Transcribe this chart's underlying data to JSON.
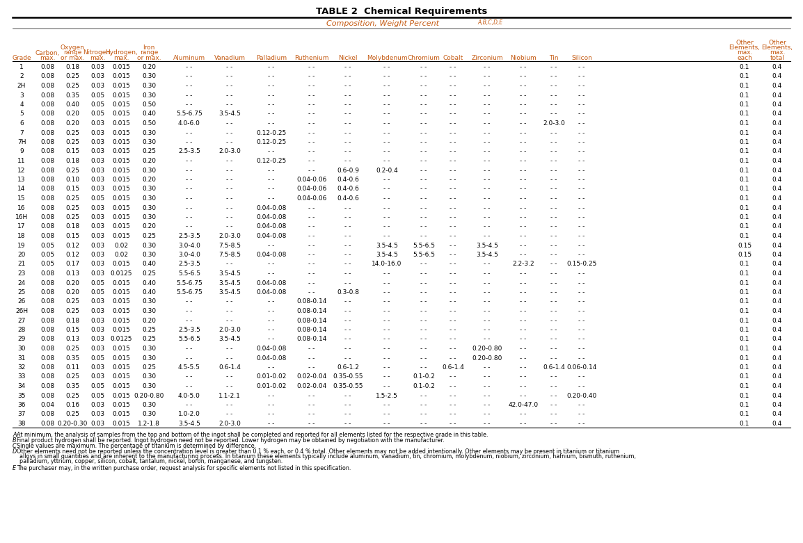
{
  "title": "TABLE 2  Chemical Requirements",
  "subtitle": "Composition, Weight Percent",
  "subtitle_super": "A,B,C,D,E",
  "header_color": "#c45911",
  "data_color": "#000000",
  "title_color": "#000000",
  "bg_color": "#ffffff",
  "line_color": "#000000",
  "rows": [
    [
      "1",
      "0.08",
      "0.18",
      "0.03",
      "0.015",
      "0.20",
      "- -",
      "- -",
      "- -",
      "- -",
      "- -",
      "- -",
      "- -",
      "- -",
      "- -",
      "- -",
      "- -",
      "- -",
      "0.1",
      "0.4"
    ],
    [
      "2",
      "0.08",
      "0.25",
      "0.03",
      "0.015",
      "0.30",
      "- -",
      "- -",
      "- -",
      "- -",
      "- -",
      "- -",
      "- -",
      "- -",
      "- -",
      "- -",
      "- -",
      "- -",
      "0.1",
      "0.4"
    ],
    [
      "2H",
      "0.08",
      "0.25",
      "0.03",
      "0.015",
      "0.30",
      "- -",
      "- -",
      "- -",
      "- -",
      "- -",
      "- -",
      "- -",
      "- -",
      "- -",
      "- -",
      "- -",
      "- -",
      "0.1",
      "0.4"
    ],
    [
      "3",
      "0.08",
      "0.35",
      "0.05",
      "0.015",
      "0.30",
      "- -",
      "- -",
      "- -",
      "- -",
      "- -",
      "- -",
      "- -",
      "- -",
      "- -",
      "- -",
      "- -",
      "- -",
      "0.1",
      "0.4"
    ],
    [
      "4",
      "0.08",
      "0.40",
      "0.05",
      "0.015",
      "0.50",
      "- -",
      "- -",
      "- -",
      "- -",
      "- -",
      "- -",
      "- -",
      "- -",
      "- -",
      "- -",
      "- -",
      "- -",
      "0.1",
      "0.4"
    ],
    [
      "5",
      "0.08",
      "0.20",
      "0.05",
      "0.015",
      "0.40",
      "5.5-6.75",
      "3.5-4.5",
      "- -",
      "- -",
      "- -",
      "- -",
      "- -",
      "- -",
      "- -",
      "- -",
      "- -",
      "- -",
      "0.1",
      "0.4"
    ],
    [
      "6",
      "0.08",
      "0.20",
      "0.03",
      "0.015",
      "0.50",
      "4.0-6.0",
      "- -",
      "- -",
      "- -",
      "- -",
      "- -",
      "- -",
      "- -",
      "- -",
      "- -",
      "2.0-3.0",
      "- -",
      "0.1",
      "0.4"
    ],
    [
      "7",
      "0.08",
      "0.25",
      "0.03",
      "0.015",
      "0.30",
      "- -",
      "- -",
      "0.12-0.25",
      "- -",
      "- -",
      "- -",
      "- -",
      "- -",
      "- -",
      "- -",
      "- -",
      "- -",
      "0.1",
      "0.4"
    ],
    [
      "7H",
      "0.08",
      "0.25",
      "0.03",
      "0.015",
      "0.30",
      "- -",
      "- -",
      "0.12-0.25",
      "- -",
      "- -",
      "- -",
      "- -",
      "- -",
      "- -",
      "- -",
      "- -",
      "- -",
      "0.1",
      "0.4"
    ],
    [
      "9",
      "0.08",
      "0.15",
      "0.03",
      "0.015",
      "0.25",
      "2.5-3.5",
      "2.0-3.0",
      "- -",
      "- -",
      "- -",
      "- -",
      "- -",
      "- -",
      "- -",
      "- -",
      "- -",
      "- -",
      "0.1",
      "0.4"
    ],
    [
      "11",
      "0.08",
      "0.18",
      "0.03",
      "0.015",
      "0.20",
      "- -",
      "- -",
      "0.12-0.25",
      "- -",
      "- -",
      "- -",
      "- -",
      "- -",
      "- -",
      "- -",
      "- -",
      "- -",
      "0.1",
      "0.4"
    ],
    [
      "12",
      "0.08",
      "0.25",
      "0.03",
      "0.015",
      "0.30",
      "- -",
      "- -",
      "- -",
      "- -",
      "0.6-0.9",
      "0.2-0.4",
      "- -",
      "- -",
      "- -",
      "- -",
      "- -",
      "- -",
      "0.1",
      "0.4"
    ],
    [
      "13",
      "0.08",
      "0.10",
      "0.03",
      "0.015",
      "0.20",
      "- -",
      "- -",
      "- -",
      "0.04-0.06",
      "0.4-0.6",
      "- -",
      "- -",
      "- -",
      "- -",
      "- -",
      "- -",
      "- -",
      "0.1",
      "0.4"
    ],
    [
      "14",
      "0.08",
      "0.15",
      "0.03",
      "0.015",
      "0.30",
      "- -",
      "- -",
      "- -",
      "0.04-0.06",
      "0.4-0.6",
      "- -",
      "- -",
      "- -",
      "- -",
      "- -",
      "- -",
      "- -",
      "0.1",
      "0.4"
    ],
    [
      "15",
      "0.08",
      "0.25",
      "0.05",
      "0.015",
      "0.30",
      "- -",
      "- -",
      "- -",
      "0.04-0.06",
      "0.4-0.6",
      "- -",
      "- -",
      "- -",
      "- -",
      "- -",
      "- -",
      "- -",
      "0.1",
      "0.4"
    ],
    [
      "16",
      "0.08",
      "0.25",
      "0.03",
      "0.015",
      "0.30",
      "- -",
      "- -",
      "0.04-0.08",
      "- -",
      "- -",
      "- -",
      "- -",
      "- -",
      "- -",
      "- -",
      "- -",
      "- -",
      "0.1",
      "0.4"
    ],
    [
      "16H",
      "0.08",
      "0.25",
      "0.03",
      "0.015",
      "0.30",
      "- -",
      "- -",
      "0.04-0.08",
      "- -",
      "- -",
      "- -",
      "- -",
      "- -",
      "- -",
      "- -",
      "- -",
      "- -",
      "0.1",
      "0.4"
    ],
    [
      "17",
      "0.08",
      "0.18",
      "0.03",
      "0.015",
      "0.20",
      "- -",
      "- -",
      "0.04-0.08",
      "- -",
      "- -",
      "- -",
      "- -",
      "- -",
      "- -",
      "- -",
      "- -",
      "- -",
      "0.1",
      "0.4"
    ],
    [
      "18",
      "0.08",
      "0.15",
      "0.03",
      "0.015",
      "0.25",
      "2.5-3.5",
      "2.0-3.0",
      "0.04-0.08",
      "- -",
      "- -",
      "- -",
      "- -",
      "- -",
      "- -",
      "- -",
      "- -",
      "- -",
      "0.1",
      "0.4"
    ],
    [
      "19",
      "0.05",
      "0.12",
      "0.03",
      "0.02",
      "0.30",
      "3.0-4.0",
      "7.5-8.5",
      "- -",
      "- -",
      "- -",
      "3.5-4.5",
      "5.5-6.5",
      "- -",
      "3.5-4.5",
      "- -",
      "- -",
      "- -",
      "0.15",
      "0.4"
    ],
    [
      "20",
      "0.05",
      "0.12",
      "0.03",
      "0.02",
      "0.30",
      "3.0-4.0",
      "7.5-8.5",
      "0.04-0.08",
      "- -",
      "- -",
      "3.5-4.5",
      "5.5-6.5",
      "- -",
      "3.5-4.5",
      "- -",
      "- -",
      "- -",
      "0.15",
      "0.4"
    ],
    [
      "21",
      "0.05",
      "0.17",
      "0.03",
      "0.015",
      "0.40",
      "2.5-3.5",
      "- -",
      "- -",
      "- -",
      "- -",
      "14.0-16.0",
      "- -",
      "- -",
      "- -",
      "2.2-3.2",
      "- -",
      "0.15-0.25",
      "0.1",
      "0.4"
    ],
    [
      "23",
      "0.08",
      "0.13",
      "0.03",
      "0.0125",
      "0.25",
      "5.5-6.5",
      "3.5-4.5",
      "- -",
      "- -",
      "- -",
      "- -",
      "- -",
      "- -",
      "- -",
      "- -",
      "- -",
      "- -",
      "0.1",
      "0.4"
    ],
    [
      "24",
      "0.08",
      "0.20",
      "0.05",
      "0.015",
      "0.40",
      "5.5-6.75",
      "3.5-4.5",
      "0.04-0.08",
      "- -",
      "- -",
      "- -",
      "- -",
      "- -",
      "- -",
      "- -",
      "- -",
      "- -",
      "0.1",
      "0.4"
    ],
    [
      "25",
      "0.08",
      "0.20",
      "0.05",
      "0.015",
      "0.40",
      "5.5-6.75",
      "3.5-4.5",
      "0.04-0.08",
      "- -",
      "0.3-0.8",
      "- -",
      "- -",
      "- -",
      "- -",
      "- -",
      "- -",
      "- -",
      "0.1",
      "0.4"
    ],
    [
      "26",
      "0.08",
      "0.25",
      "0.03",
      "0.015",
      "0.30",
      "- -",
      "- -",
      "- -",
      "0.08-0.14",
      "- -",
      "- -",
      "- -",
      "- -",
      "- -",
      "- -",
      "- -",
      "- -",
      "0.1",
      "0.4"
    ],
    [
      "26H",
      "0.08",
      "0.25",
      "0.03",
      "0.015",
      "0.30",
      "- -",
      "- -",
      "- -",
      "0.08-0.14",
      "- -",
      "- -",
      "- -",
      "- -",
      "- -",
      "- -",
      "- -",
      "- -",
      "0.1",
      "0.4"
    ],
    [
      "27",
      "0.08",
      "0.18",
      "0.03",
      "0.015",
      "0.20",
      "- -",
      "- -",
      "- -",
      "0.08-0.14",
      "- -",
      "- -",
      "- -",
      "- -",
      "- -",
      "- -",
      "- -",
      "- -",
      "0.1",
      "0.4"
    ],
    [
      "28",
      "0.08",
      "0.15",
      "0.03",
      "0.015",
      "0.25",
      "2.5-3.5",
      "2.0-3.0",
      "- -",
      "0.08-0.14",
      "- -",
      "- -",
      "- -",
      "- -",
      "- -",
      "- -",
      "- -",
      "- -",
      "0.1",
      "0.4"
    ],
    [
      "29",
      "0.08",
      "0.13",
      "0.03",
      "0.0125",
      "0.25",
      "5.5-6.5",
      "3.5-4.5",
      "- -",
      "0.08-0.14",
      "- -",
      "- -",
      "- -",
      "- -",
      "- -",
      "- -",
      "- -",
      "- -",
      "0.1",
      "0.4"
    ],
    [
      "30",
      "0.08",
      "0.25",
      "0.03",
      "0.015",
      "0.30",
      "- -",
      "- -",
      "0.04-0.08",
      "- -",
      "- -",
      "- -",
      "- -",
      "- -",
      "0.20-0.80",
      "- -",
      "- -",
      "- -",
      "0.1",
      "0.4"
    ],
    [
      "31",
      "0.08",
      "0.35",
      "0.05",
      "0.015",
      "0.30",
      "- -",
      "- -",
      "0.04-0.08",
      "- -",
      "- -",
      "- -",
      "- -",
      "- -",
      "0.20-0.80",
      "- -",
      "- -",
      "- -",
      "0.1",
      "0.4"
    ],
    [
      "32",
      "0.08",
      "0.11",
      "0.03",
      "0.015",
      "0.25",
      "4.5-5.5",
      "0.6-1.4",
      "- -",
      "- -",
      "0.6-1.2",
      "- -",
      "- -",
      "0.6-1.4",
      "- -",
      "- -",
      "0.6-1.4",
      "0.06-0.14",
      "0.1",
      "0.4"
    ],
    [
      "33",
      "0.08",
      "0.25",
      "0.03",
      "0.015",
      "0.30",
      "- -",
      "- -",
      "0.01-0.02",
      "0.02-0.04",
      "0.35-0.55",
      "- -",
      "0.1-0.2",
      "- -",
      "- -",
      "- -",
      "- -",
      "- -",
      "0.1",
      "0.4"
    ],
    [
      "34",
      "0.08",
      "0.35",
      "0.05",
      "0.015",
      "0.30",
      "- -",
      "- -",
      "0.01-0.02",
      "0.02-0.04",
      "0.35-0.55",
      "- -",
      "0.1-0.2",
      "- -",
      "- -",
      "- -",
      "- -",
      "- -",
      "0.1",
      "0.4"
    ],
    [
      "35",
      "0.08",
      "0.25",
      "0.05",
      "0.015",
      "0.20-0.80",
      "4.0-5.0",
      "1.1-2.1",
      "- -",
      "- -",
      "- -",
      "1.5-2.5",
      "- -",
      "- -",
      "- -",
      "- -",
      "- -",
      "0.20-0.40",
      "0.1",
      "0.4"
    ],
    [
      "36",
      "0.04",
      "0.16",
      "0.03",
      "0.015",
      "0.30",
      "- -",
      "- -",
      "- -",
      "- -",
      "- -",
      "- -",
      "- -",
      "- -",
      "- -",
      "42.0-47.0",
      "- -",
      "- -",
      "0.1",
      "0.4"
    ],
    [
      "37",
      "0.08",
      "0.25",
      "0.03",
      "0.015",
      "0.30",
      "1.0-2.0",
      "- -",
      "- -",
      "- -",
      "- -",
      "- -",
      "- -",
      "- -",
      "- -",
      "- -",
      "- -",
      "- -",
      "0.1",
      "0.4"
    ],
    [
      "38",
      "0.08",
      "0.20-0.30",
      "0.03",
      "0.015",
      "1.2-1.8",
      "3.5-4.5",
      "2.0-3.0",
      "- -",
      "- -",
      "- -",
      "- -",
      "- -",
      "- -",
      "- -",
      "- -",
      "- -",
      "- -",
      "0.1",
      "0.4"
    ]
  ],
  "footnote_labels": [
    "A",
    "B",
    "C",
    "D",
    "E"
  ],
  "footnote_texts": [
    "At minimum, the analysis of samples from the top and bottom of the ingot shall be completed and reported for all elements listed for the respective grade in this table.",
    "Final product hydrogen shall be reported. Ingot hydrogen need not be reported. Lower hydrogen may be obtained by negotiation with the manufacturer.",
    "Single values are maximum. The percentage of titanium is determined by difference.",
    "Other elements need not be reported unless the concentration level is greater than 0.1 % each, or 0.4 % total. Other elements may not be added intentionally. Other elements may be present in titanium or titanium alloys in small quantities and are inherent to the manufacturing process. In titanium these elements typically include aluminum, vanadium, tin, chromium, molybdenum, niobium, zirconium, hafnium, bismuth, ruthenium, palladium, yttrium, copper, silicon, cobalt, tantalum, nickel, boron, manganese, and tungsten.",
    "The purchaser may, in the written purchase order, request analysis for specific elements not listed in this specification."
  ]
}
